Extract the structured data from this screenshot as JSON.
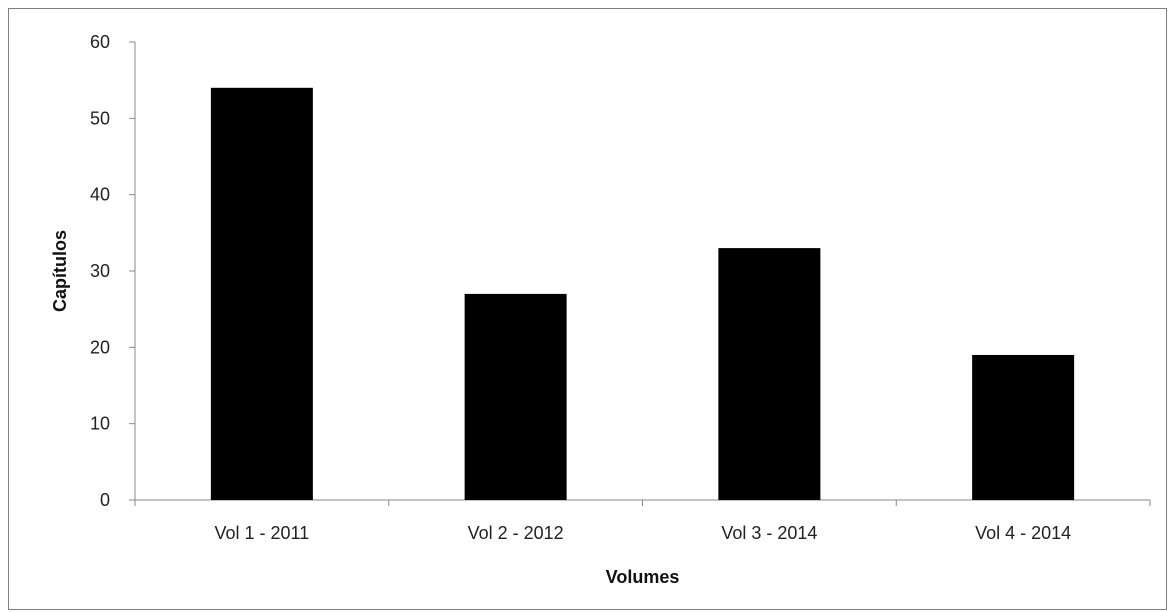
{
  "chart_data": {
    "type": "bar",
    "categories": [
      "Vol 1 - 2011",
      "Vol 2 - 2012",
      "Vol 3 - 2014",
      "Vol 4 - 2014"
    ],
    "values": [
      54,
      27,
      33,
      19
    ],
    "title": "",
    "xlabel": "Volumes",
    "ylabel": "Capítulos",
    "ylim": [
      0,
      60
    ],
    "yticks": [
      0,
      10,
      20,
      30,
      40,
      50,
      60
    ],
    "grid": false,
    "legend": "none",
    "bar_color": "#000000",
    "axis_color": "#888888"
  }
}
